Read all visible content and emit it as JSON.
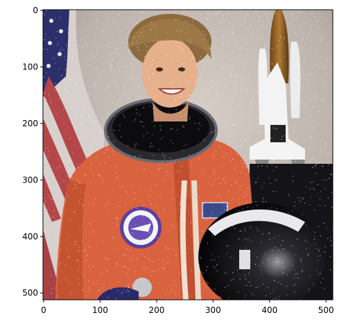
{
  "figure": {
    "x_ticks": [
      "0",
      "100",
      "200",
      "300",
      "400",
      "500"
    ],
    "y_ticks": [
      "0",
      "100",
      "200",
      "300",
      "400",
      "500"
    ],
    "image_subject": "photo-portrait-astronaut-orange-flight-suit",
    "colors": {
      "background": "#ffffff",
      "suit": "#d9623f",
      "suit_dark": "#b8472a",
      "wall": "#c9c0b8",
      "helmet": "#0b0b0e",
      "flag_red": "#b3474a",
      "flag_blue": "#2b2f6b",
      "hair": "#8d6a3e",
      "skin": "#e6b08c",
      "shuttle": "#eeeeee",
      "noise": "#ffffff"
    }
  }
}
